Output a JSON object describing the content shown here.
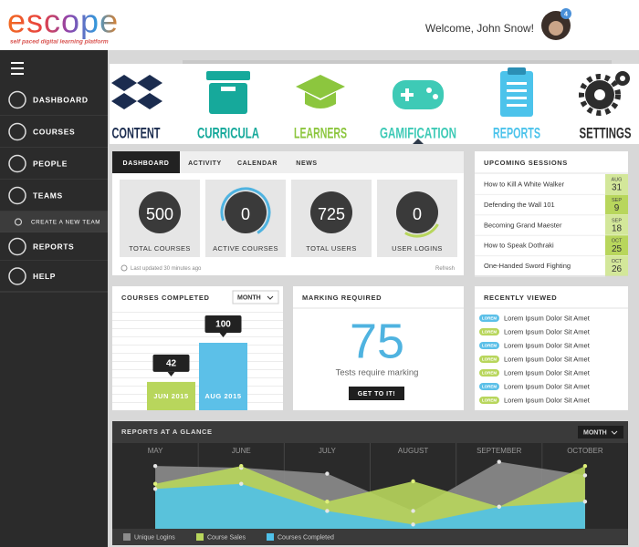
{
  "header": {
    "logo": "escope",
    "tagline": "self paced digital learning platform",
    "welcome": "Welcome, John Snow!",
    "notifications": "4"
  },
  "sidebar": {
    "items": [
      "DASHBOARD",
      "COURSES",
      "PEOPLE",
      "TEAMS",
      "CREATE A NEW TEAM",
      "REPORTS",
      "HELP"
    ]
  },
  "nav": {
    "items": [
      {
        "label": "CONTENT",
        "color": "#1b2c4f"
      },
      {
        "label": "CURRICULA",
        "color": "#16a99b"
      },
      {
        "label": "LEARNERS",
        "color": "#8cc63e"
      },
      {
        "label": "GAMIFICATION",
        "color": "#3ecab6"
      },
      {
        "label": "REPORTS",
        "color": "#4cc3eb"
      },
      {
        "label": "SETTINGS",
        "color": "#2d2d2d"
      }
    ]
  },
  "overview": {
    "tabs": [
      "DASHBOARD",
      "ACTIVITY",
      "CALENDAR",
      "NEWS"
    ],
    "stats": [
      {
        "value": 500,
        "label": "TOTAL COURSES"
      },
      {
        "value": 0,
        "label": "ACTIVE COURSES"
      },
      {
        "value": 725,
        "label": "TOTAL USERS"
      },
      {
        "value": 0,
        "label": "USER LOGINS"
      }
    ],
    "updated": "Last updated 30 minutes ago",
    "refresh": "Refresh"
  },
  "sessions": {
    "title": "UPCOMING SESSIONS",
    "items": [
      {
        "name": "How to Kill A White Walker",
        "month": "AUG",
        "day": "31"
      },
      {
        "name": "Defending the Wall 101",
        "month": "SEP",
        "day": "9"
      },
      {
        "name": "Becoming Grand Maester",
        "month": "SEP",
        "day": "18"
      },
      {
        "name": "How to Speak Dothraki",
        "month": "OCT",
        "day": "25"
      },
      {
        "name": "One-Handed Sword Fighting",
        "month": "OCT",
        "day": "26"
      }
    ]
  },
  "courses_completed": {
    "title": "COURSES COMPLETED",
    "dropdown": "MONTH",
    "chart": {
      "type": "bar",
      "categories": [
        "JUN 2015",
        "AUG 2015"
      ],
      "values": [
        42,
        100
      ],
      "colors": [
        "#b8d65c",
        "#5cc0e8"
      ],
      "ylim": [
        0,
        100
      ]
    }
  },
  "marking": {
    "title": "MARKING REQUIRED",
    "count": "75",
    "caption": "Tests require marking",
    "button": "GET TO IT!"
  },
  "recent": {
    "title": "RECENTLY VIEWED",
    "items": [
      {
        "tag": "LOREM",
        "text": "Lorem Ipsum Dolor Sit Amet",
        "color": "#5cc0e8"
      },
      {
        "tag": "LOREM",
        "text": "Lorem Ipsum Dolor Sit Amet",
        "color": "#b8d65c"
      },
      {
        "tag": "LOREM",
        "text": "Lorem Ipsum Dolor Sit Amet",
        "color": "#5cc0e8"
      },
      {
        "tag": "LOREM",
        "text": "Lorem Ipsum Dolor Sit Amet",
        "color": "#b8d65c"
      },
      {
        "tag": "LOREM",
        "text": "Lorem Ipsum Dolor Sit Amet",
        "color": "#b8d65c"
      },
      {
        "tag": "LOREM",
        "text": "Lorem Ipsum Dolor Sit Amet",
        "color": "#5cc0e8"
      },
      {
        "tag": "LOREM",
        "text": "Lorem Ipsum Dolor Sit Amet",
        "color": "#b8d65c"
      }
    ]
  },
  "reports": {
    "title": "REPORTS AT A GLANCE",
    "dropdown": "MONTH",
    "chart": {
      "type": "area",
      "categories": [
        "MAY",
        "JUNE",
        "JULY",
        "AUGUST",
        "SEPTEMBER",
        "OCTOBER"
      ],
      "series": [
        {
          "name": "Unique Logins",
          "color": "#8c8c8c",
          "values": [
            74,
            72,
            65,
            21,
            79,
            63
          ]
        },
        {
          "name": "Course Sales",
          "color": "#b8d65c",
          "values": [
            53,
            74,
            32,
            56,
            26,
            74
          ]
        },
        {
          "name": "Courses Completed",
          "color": "#4fc1e9",
          "values": [
            47,
            53,
            21,
            5,
            26,
            32
          ]
        }
      ],
      "ylim": [
        0,
        100
      ]
    }
  }
}
